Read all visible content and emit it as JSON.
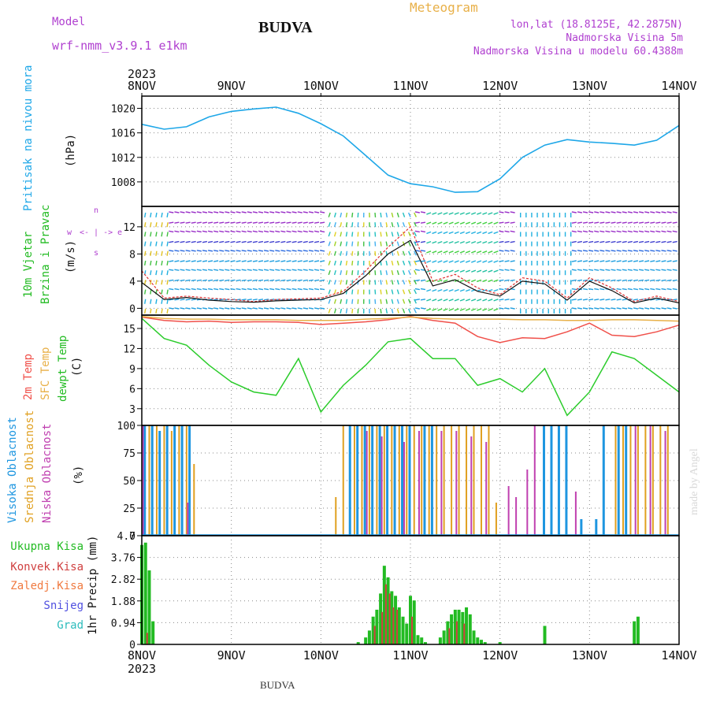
{
  "header": {
    "model_label": "Model",
    "model_name": "wrf-nmm_v3.9.1 e1km",
    "title": "BUDVA",
    "meteogram_label": "Meteogram",
    "lonlat": "lon,lat (18.8125E, 42.2875N)",
    "elevation": "Nadmorska Visina 5m",
    "model_elevation": "Nadmorska Visina u modelu 60.4388m"
  },
  "footer": {
    "station": "BUDVA",
    "credit": "made by Angel"
  },
  "colors": {
    "pressure": "#1ea7e8",
    "temp2m": "#f0504a",
    "sfc_temp": "#e8b048",
    "dewpt": "#2ccc2c",
    "cloud_high": "#1e96e0",
    "cloud_mid": "#e0a020",
    "cloud_low": "#c040b0",
    "precip_total": "#22bb22",
    "precip_conv": "#d04040",
    "precip_frozen": "#f07a40",
    "snow": "#5050e0",
    "graupel": "#2cbcbc",
    "purple_text": "#b040d0",
    "meteogram_text": "#e8b048"
  },
  "chart_data": [
    {
      "type": "line",
      "panel": "pressure",
      "ylabel": "(hPa)",
      "ylabel_side": "Pritisak na nivou mora",
      "ylim": [
        1004,
        1022
      ],
      "yticks": [
        1008,
        1012,
        1016,
        1020
      ],
      "time_axis": {
        "start": "2023-11-08T00",
        "end": "2023-11-14T00",
        "year": "2023",
        "labels": [
          "8NOV",
          "9NOV",
          "10NOV",
          "11NOV",
          "12NOV",
          "13NOV",
          "14NOV"
        ]
      },
      "series": [
        {
          "name": "",
          "x_hours": [
            0,
            6,
            12,
            18,
            24,
            30,
            36,
            42,
            48,
            54,
            60,
            66,
            72,
            78,
            84,
            90,
            96,
            102,
            108,
            114,
            120,
            126,
            132,
            138,
            144
          ],
          "values": [
            1017.4,
            1016.6,
            1017.0,
            1018.6,
            1019.5,
            1019.9,
            1020.2,
            1019.2,
            1017.5,
            1015.5,
            1012.3,
            1009.1,
            1007.7,
            1007.2,
            1006.3,
            1006.4,
            1008.5,
            1012.0,
            1014.0,
            1014.9,
            1014.5,
            1014.3,
            1014.0,
            1014.8,
            1017.2
          ]
        }
      ]
    },
    {
      "type": "line",
      "panel": "wind",
      "ylabel": "(m/s)",
      "ylabel_side": [
        "10m Vjetar",
        "Brzina i Pravac"
      ],
      "direction_key": {
        "w": "w",
        "e": "e",
        "n": "n",
        "s": "s",
        "arrow": "<- | ->"
      },
      "ylim": [
        -1,
        15
      ],
      "yticks": [
        0,
        4,
        8,
        12
      ],
      "series": [
        {
          "name": "",
          "x_hours": [
            0,
            6,
            12,
            18,
            24,
            30,
            36,
            42,
            48,
            54,
            60,
            66,
            72,
            78,
            84,
            90,
            96,
            102,
            108,
            114,
            120,
            126,
            132,
            138,
            144
          ],
          "values": [
            5.5,
            1.5,
            1.8,
            1.5,
            1.3,
            1.0,
            1.3,
            1.4,
            1.5,
            2.5,
            5.5,
            9.0,
            12.0,
            4.0,
            5.0,
            3.0,
            2.0,
            4.5,
            4.0,
            1.5,
            4.5,
            3.0,
            1.0,
            1.8,
            1.0
          ]
        },
        {
          "name": "",
          "x_hours": [
            0,
            6,
            12,
            18,
            24,
            30,
            36,
            42,
            48,
            54,
            60,
            66,
            72,
            78,
            84,
            90,
            96,
            102,
            108,
            114,
            120,
            126,
            132,
            138,
            144
          ],
          "values": [
            3.8,
            1.3,
            1.6,
            1.2,
            1.0,
            0.9,
            1.1,
            1.2,
            1.3,
            2.2,
            4.8,
            8.0,
            10.0,
            3.3,
            4.2,
            2.5,
            1.8,
            4.0,
            3.6,
            1.2,
            4.0,
            2.6,
            0.8,
            1.5,
            0.8
          ]
        }
      ]
    },
    {
      "type": "line",
      "panel": "temperature",
      "ylabel": "(C)",
      "ylabel_side": [
        "2m Temp",
        "SFC Temp",
        "dewpt Temp"
      ],
      "ylim": [
        0.5,
        17
      ],
      "yticks": [
        3,
        6,
        9,
        12,
        15
      ],
      "series": [
        {
          "name": "2m Temp",
          "x_hours": [
            0,
            6,
            12,
            18,
            24,
            30,
            36,
            42,
            48,
            54,
            60,
            66,
            72,
            78,
            84,
            90,
            96,
            102,
            108,
            114,
            120,
            126,
            132,
            138,
            144
          ],
          "values": [
            16.7,
            16.2,
            16.0,
            16.1,
            15.9,
            16.0,
            16.0,
            15.9,
            15.6,
            15.8,
            16.0,
            16.3,
            16.8,
            16.2,
            15.8,
            13.8,
            12.9,
            13.6,
            13.5,
            14.5,
            15.8,
            14.0,
            13.8,
            14.5,
            15.5
          ]
        },
        {
          "name": "SFC Temp",
          "x_hours": [
            0,
            6,
            12,
            18,
            24,
            30,
            36,
            42,
            48,
            54,
            60,
            66,
            72,
            78,
            84,
            90,
            96,
            102,
            108,
            114,
            120,
            126,
            132,
            138,
            144
          ],
          "values": [
            16.8,
            16.5,
            16.4,
            16.4,
            16.3,
            16.3,
            16.3,
            16.2,
            16.2,
            16.2,
            16.4,
            16.5,
            16.7,
            16.5,
            16.4,
            16.4,
            16.4,
            16.3,
            16.3,
            16.2,
            16.2,
            16.3,
            16.3,
            16.2,
            16.1
          ]
        },
        {
          "name": "dewpt Temp",
          "x_hours": [
            0,
            6,
            12,
            18,
            24,
            30,
            36,
            42,
            48,
            54,
            60,
            66,
            72,
            78,
            84,
            90,
            96,
            102,
            108,
            114,
            120,
            126,
            132,
            138,
            144
          ],
          "values": [
            16.5,
            13.5,
            12.5,
            9.5,
            7.0,
            5.5,
            5.0,
            10.5,
            2.5,
            6.5,
            9.5,
            13.0,
            13.5,
            10.5,
            10.5,
            6.5,
            7.5,
            5.5,
            9.0,
            2.0,
            5.5,
            11.5,
            10.5,
            8.0,
            5.5
          ]
        }
      ]
    },
    {
      "type": "bar",
      "panel": "clouds",
      "ylabel": "(%)",
      "ylabel_side": [
        "Visoka Oblacnost",
        "Srednja Oblacnost",
        "Niska Oblacnost"
      ],
      "ylim": [
        0,
        100
      ],
      "yticks": [
        0,
        25,
        50,
        75,
        100
      ],
      "series": [
        {
          "name": "Visoka Oblacnost",
          "x_hours": [
            1,
            3,
            5,
            7,
            9,
            11,
            13,
            56,
            58,
            60,
            62,
            64,
            66,
            68,
            70,
            72,
            76,
            78,
            108,
            110,
            112,
            114,
            118,
            122,
            124,
            128,
            130
          ],
          "values": [
            100,
            100,
            95,
            100,
            100,
            100,
            100,
            100,
            100,
            100,
            100,
            100,
            100,
            100,
            100,
            100,
            100,
            100,
            100,
            100,
            100,
            100,
            15,
            15,
            100,
            100,
            100
          ]
        },
        {
          "name": "Srednja Oblacnost",
          "x_hours": [
            2,
            4,
            6,
            8,
            10,
            12,
            14,
            52,
            54,
            57,
            59,
            61,
            63,
            65,
            67,
            69,
            71,
            73,
            75,
            77,
            79,
            81,
            83,
            85,
            87,
            89,
            91,
            93,
            95,
            127,
            129,
            131,
            133,
            135,
            137,
            139,
            141
          ],
          "values": [
            100,
            100,
            100,
            95,
            100,
            100,
            65,
            35,
            100,
            100,
            100,
            100,
            100,
            100,
            100,
            100,
            100,
            100,
            100,
            100,
            100,
            100,
            100,
            100,
            100,
            100,
            100,
            100,
            30,
            100,
            100,
            100,
            100,
            100,
            100,
            100,
            100
          ]
        },
        {
          "name": "Niska Oblacnost",
          "x_hours": [
            0,
            12,
            60,
            64,
            70,
            74,
            80,
            84,
            88,
            92,
            98,
            100,
            103,
            105,
            116,
            132,
            136,
            140
          ],
          "values": [
            100,
            30,
            95,
            90,
            85,
            95,
            95,
            95,
            90,
            85,
            45,
            35,
            60,
            100,
            40,
            100,
            100,
            95
          ]
        }
      ]
    },
    {
      "type": "bar",
      "panel": "precip",
      "ylabel": "1hr Precip (mm)",
      "ylabel_side": [
        "Ukupna Kisa",
        "Konvek.Kisa",
        "Zaledj.Kisa",
        "Snijeg",
        "Grad"
      ],
      "ylim": [
        0,
        4.7
      ],
      "yticks": [
        "0",
        "0.94",
        "1.88",
        "2.82",
        "3.76",
        "4.7"
      ],
      "series": [
        {
          "name": "Ukupna Kisa",
          "x_hours": [
            0,
            1,
            2,
            3,
            58,
            60,
            61,
            62,
            63,
            64,
            65,
            66,
            67,
            68,
            69,
            70,
            71,
            72,
            73,
            74,
            75,
            76,
            80,
            81,
            82,
            83,
            84,
            85,
            86,
            87,
            88,
            89,
            90,
            91,
            92,
            96,
            108,
            132,
            133
          ],
          "values": [
            4.3,
            4.4,
            3.2,
            1.0,
            0.1,
            0.3,
            0.6,
            1.2,
            1.5,
            2.2,
            3.4,
            2.9,
            2.3,
            2.1,
            1.6,
            1.2,
            0.9,
            2.1,
            1.9,
            0.4,
            0.3,
            0.1,
            0.3,
            0.6,
            1.0,
            1.3,
            1.5,
            1.5,
            1.4,
            1.6,
            1.3,
            0.6,
            0.3,
            0.2,
            0.1,
            0.1,
            0.8,
            1.0,
            1.2
          ]
        },
        {
          "name": "Konvek.Kisa",
          "x_hours": [
            1,
            62,
            64,
            65,
            66,
            67,
            68,
            72,
            82,
            84,
            86
          ],
          "values": [
            0.5,
            0.8,
            1.4,
            2.6,
            2.2,
            1.6,
            1.5,
            1.2,
            0.7,
            1.0,
            0.9
          ]
        }
      ]
    }
  ]
}
